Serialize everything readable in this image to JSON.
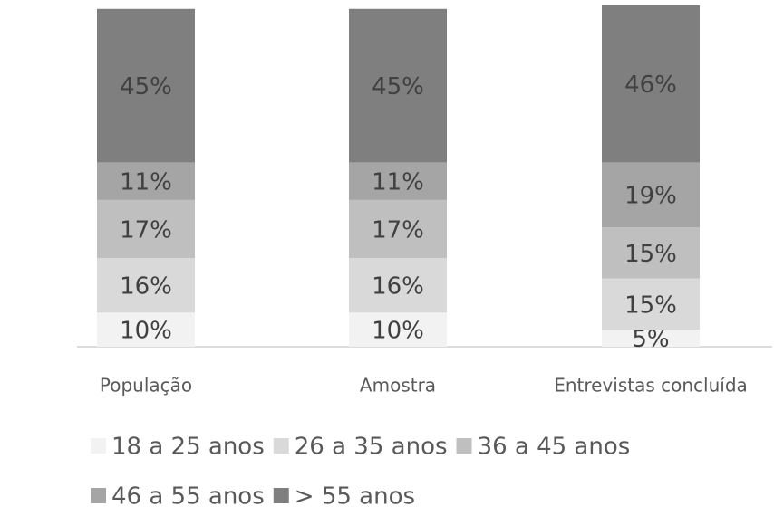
{
  "chart_data": {
    "type": "stacked_bar",
    "categories": [
      "População",
      "Amostra",
      "Entrevistas concluída"
    ],
    "series": [
      {
        "name": "18 a 25 anos",
        "color": "#f2f2f2",
        "values": [
          10,
          10,
          5
        ],
        "value_labels": [
          "10%",
          "10%",
          "5%"
        ]
      },
      {
        "name": "26 a 35 anos",
        "color": "#d9d9d9",
        "values": [
          16,
          16,
          15
        ],
        "value_labels": [
          "16%",
          "16%",
          "15%"
        ]
      },
      {
        "name": "36 a 45 anos",
        "color": "#bfbfbf",
        "values": [
          17,
          17,
          15
        ],
        "value_labels": [
          "17%",
          "17%",
          "15%"
        ]
      },
      {
        "name": "46 a 55 anos",
        "color": "#a5a5a5",
        "values": [
          11,
          11,
          19
        ],
        "value_labels": [
          "11%",
          "11%",
          "19%"
        ]
      },
      {
        "name": "> 55 anos",
        "color": "#7f7f7f",
        "values": [
          45,
          45,
          46
        ],
        "value_labels": [
          "45%",
          "45%",
          "46%"
        ]
      }
    ],
    "legend": "bottom"
  }
}
